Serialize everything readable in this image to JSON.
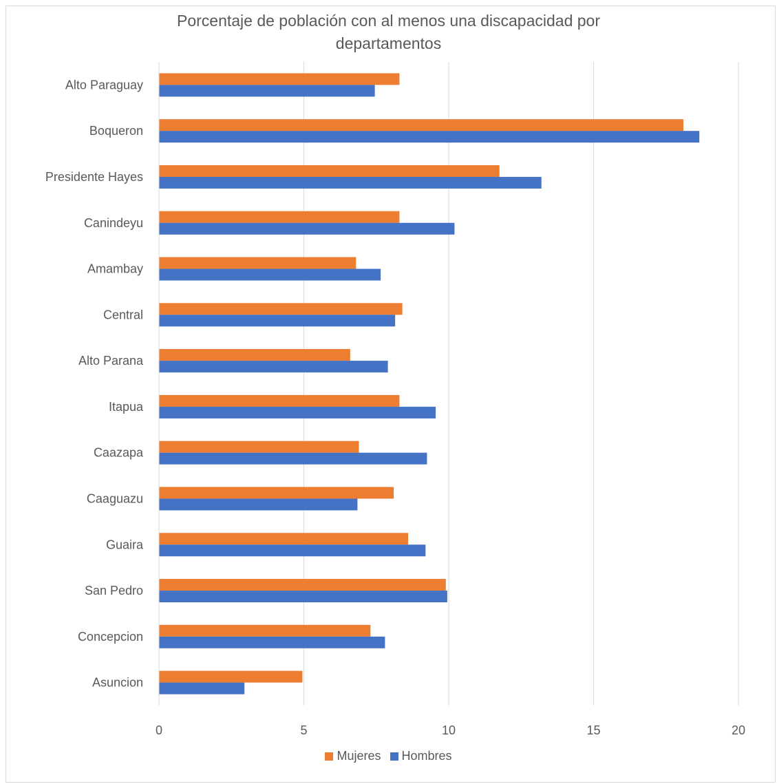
{
  "chart_data": {
    "type": "bar",
    "orientation": "horizontal",
    "title_line1": "Porcentaje de población con al menos una discapacidad por",
    "title_line2": "departamentos",
    "categories": [
      "Alto Paraguay",
      "Boqueron",
      "Presidente Hayes",
      "Canindeyu",
      "Amambay",
      "Central",
      "Alto Parana",
      "Itapua",
      "Caazapa",
      "Caaguazu",
      "Guaira",
      "San Pedro",
      "Concepcion",
      "Asuncion"
    ],
    "series": [
      {
        "name": "Mujeres",
        "color": "#ED7D31",
        "values": [
          8.3,
          18.1,
          11.75,
          8.3,
          6.8,
          8.4,
          6.6,
          8.3,
          6.9,
          8.1,
          8.6,
          9.9,
          7.3,
          4.95
        ]
      },
      {
        "name": "Hombres",
        "color": "#4472C4",
        "values": [
          7.45,
          18.65,
          13.2,
          10.2,
          7.65,
          8.15,
          7.9,
          9.55,
          9.25,
          6.85,
          9.2,
          9.95,
          7.8,
          2.95
        ]
      }
    ],
    "xlim": [
      0,
      20
    ],
    "xticks": [
      "0",
      "5",
      "10",
      "15",
      "20"
    ],
    "grid": true,
    "legend_position": "bottom"
  }
}
